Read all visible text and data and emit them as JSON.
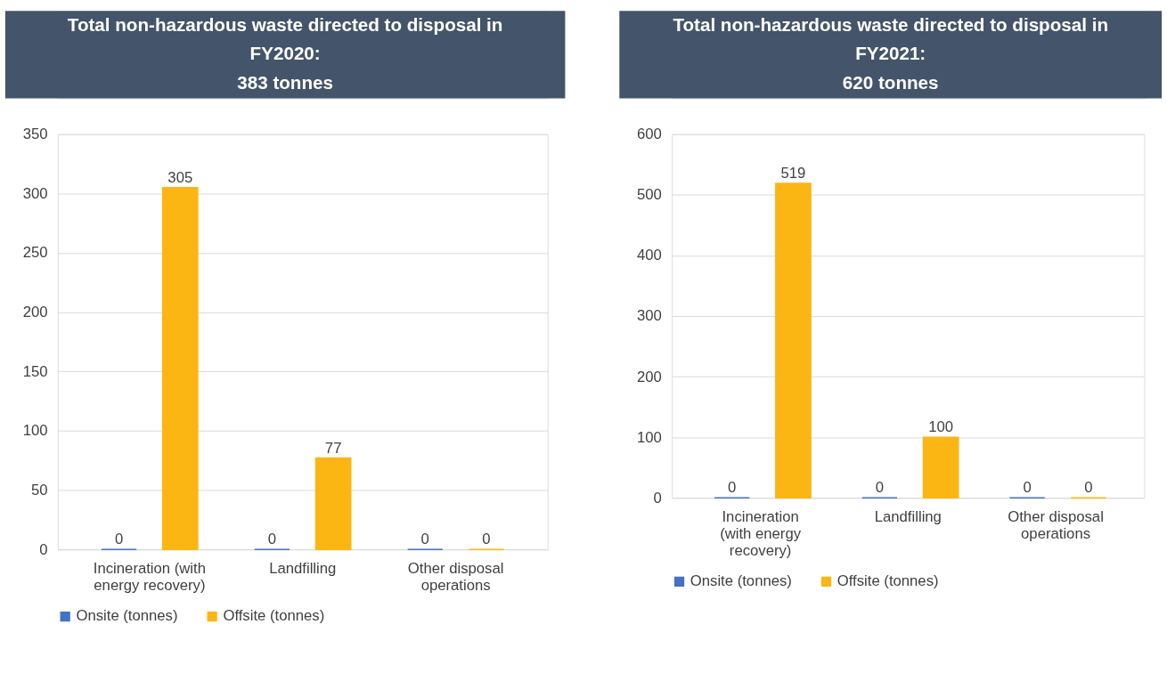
{
  "chart_data": [
    {
      "type": "bar",
      "title": "Total non-hazardous waste directed to disposal in FY2020:",
      "subtitle": "383 tonnes",
      "categories": [
        "Incineration (with energy recovery)",
        "Landfilling",
        "Other disposal operations"
      ],
      "series": [
        {
          "name": "Onsite (tonnes)",
          "color": "#4472c4",
          "values": [
            0,
            0,
            0
          ]
        },
        {
          "name": "Offsite (tonnes)",
          "color": "#fbb614",
          "values": [
            305,
            77,
            0
          ]
        }
      ],
      "ylim": [
        0,
        350
      ],
      "yticks": [
        0,
        50,
        100,
        150,
        200,
        250,
        300,
        350
      ],
      "grid": "y",
      "legend": "bottom",
      "data_labels": true
    },
    {
      "type": "bar",
      "title": "Total non-hazardous waste directed to disposal in FY2021:",
      "subtitle": "620 tonnes",
      "categories": [
        "Incineration (with energy recovery)",
        "Landfilling",
        "Other disposal operations"
      ],
      "series": [
        {
          "name": "Onsite (tonnes)",
          "color": "#4472c4",
          "values": [
            0,
            0,
            0
          ]
        },
        {
          "name": "Offsite (tonnes)",
          "color": "#fbb614",
          "values": [
            519,
            100,
            0
          ]
        }
      ],
      "ylim": [
        0,
        600
      ],
      "yticks": [
        0,
        100,
        200,
        300,
        400,
        500,
        600
      ],
      "grid": "y",
      "legend": "bottom",
      "data_labels": true
    }
  ]
}
